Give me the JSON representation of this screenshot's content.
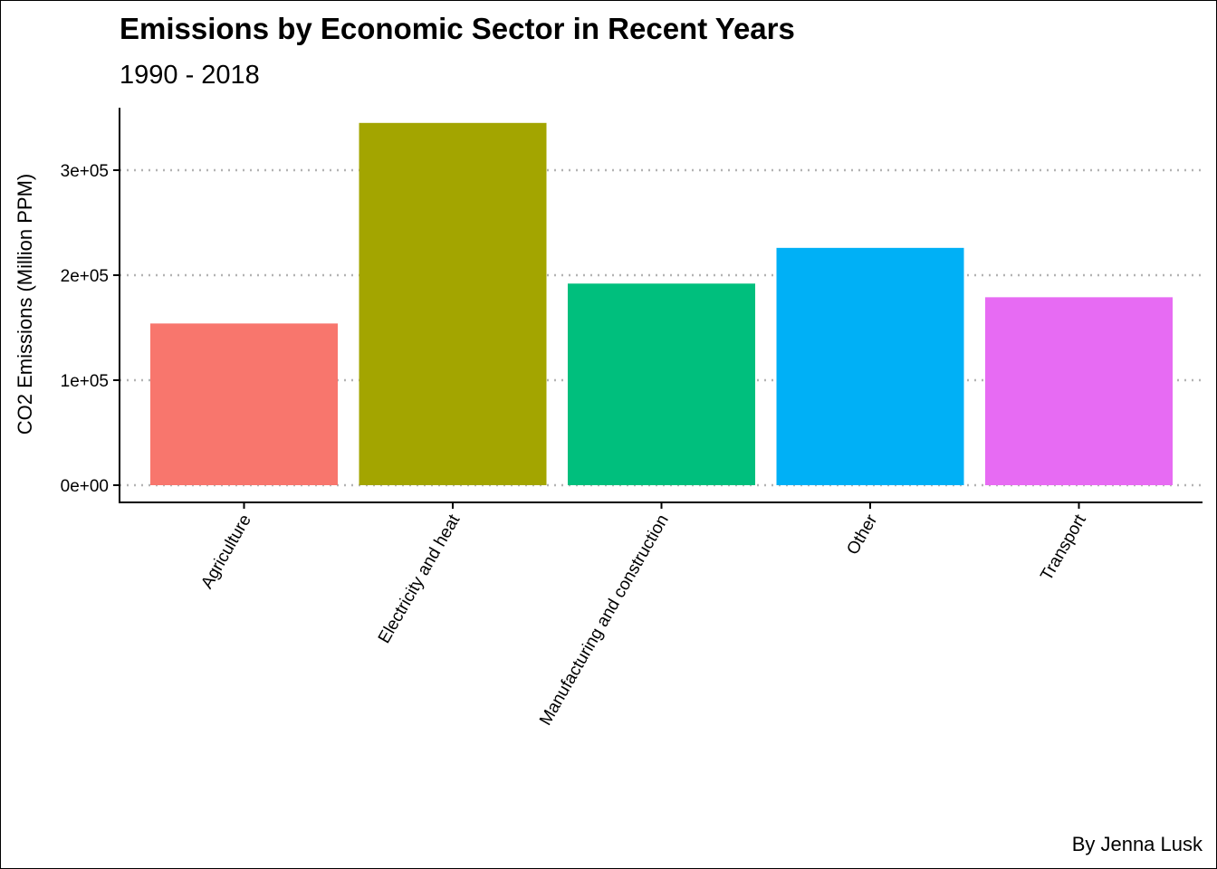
{
  "chart_data": {
    "type": "bar",
    "title": "Emissions by Economic Sector in Recent Years",
    "subtitle": "1990 - 2018",
    "xlabel": "",
    "ylabel": "CO2 Emissions (Million PPM)",
    "caption": "By Jenna Lusk",
    "categories": [
      "Agriculture",
      "Electricity and heat",
      "Manufacturing and construction",
      "Other",
      "Transport"
    ],
    "values": [
      154000,
      345000,
      192000,
      226000,
      179000
    ],
    "colors": [
      "#F8766D",
      "#A3A500",
      "#00BF7D",
      "#00B0F6",
      "#E76BF3"
    ],
    "ylim": [
      0,
      360000
    ],
    "yticks": [
      0,
      100000,
      200000,
      300000
    ],
    "ytick_labels": [
      "0e+00",
      "1e+05",
      "2e+05",
      "3e+05"
    ],
    "grid": "horizontal dotted",
    "legend": "none"
  }
}
